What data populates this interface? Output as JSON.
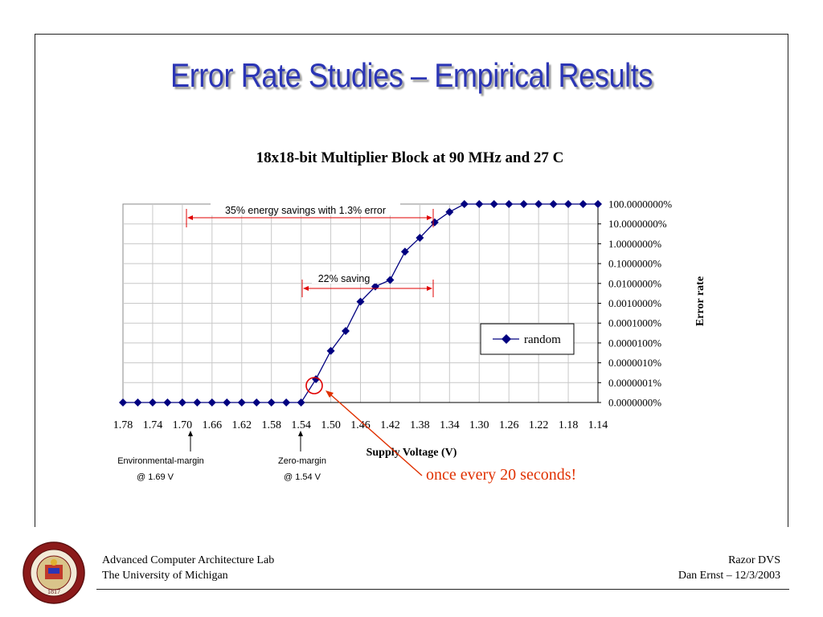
{
  "slide": {
    "title": "Error Rate Studies – Empirical Results"
  },
  "footer": {
    "left_line1": "Advanced Computer Architecture Lab",
    "left_line2": "The University of Michigan",
    "right_line1": "Razor DVS",
    "right_line2": "Dan Ernst – 12/3/2003"
  },
  "colors": {
    "title": "#2b35b5",
    "series": "#000080",
    "annotation": "#e00000",
    "callout": "#e03000"
  },
  "logo": {
    "text_top": "THE UNIVERSITY OF MICHIGAN",
    "year": "1817"
  },
  "chart_data": {
    "type": "line",
    "title": "18x18-bit Multiplier Block at 90 MHz and 27 C",
    "xlabel": "Supply Voltage (V)",
    "ylabel": "Error rate",
    "y_scale": "log",
    "x_reversed": true,
    "xlim": [
      1.14,
      1.78
    ],
    "grid": true,
    "legend": {
      "position": "right",
      "entries": [
        "random"
      ]
    },
    "x_tick_labels": [
      "1.78",
      "1.74",
      "1.70",
      "1.66",
      "1.62",
      "1.58",
      "1.54",
      "1.50",
      "1.46",
      "1.42",
      "1.38",
      "1.34",
      "1.30",
      "1.26",
      "1.22",
      "1.18",
      "1.14"
    ],
    "y_tick_labels": [
      "100.0000000%",
      "10.0000000%",
      "1.0000000%",
      "0.1000000%",
      "0.0100000%",
      "0.0010000%",
      "0.0001000%",
      "0.0000100%",
      "0.0000010%",
      "0.0000001%",
      "0.0000000%"
    ],
    "series": [
      {
        "name": "random",
        "x": [
          1.78,
          1.76,
          1.74,
          1.72,
          1.7,
          1.68,
          1.66,
          1.64,
          1.62,
          1.6,
          1.58,
          1.56,
          1.54,
          1.52,
          1.5,
          1.48,
          1.46,
          1.44,
          1.42,
          1.4,
          1.38,
          1.36,
          1.34,
          1.32,
          1.3,
          1.28,
          1.26,
          1.24,
          1.22,
          1.2,
          1.18,
          1.16,
          1.14
        ],
        "y_percent": [
          0,
          0,
          0,
          0,
          0,
          0,
          0,
          0,
          0,
          0,
          0,
          0,
          0,
          1.5e-07,
          4e-06,
          4e-05,
          0.0012,
          0.007,
          0.015,
          0.4,
          2,
          12,
          40,
          100,
          100,
          100,
          100,
          100,
          100,
          100,
          100,
          100,
          100
        ]
      }
    ],
    "annotations": {
      "energy_savings": "35% energy savings with 1.3% error",
      "saving": "22% saving",
      "env_margin_line1": "Environmental-margin",
      "env_margin_line2": "@ 1.69 V",
      "zero_margin_line1": "Zero-margin",
      "zero_margin_line2": "@ 1.54 V",
      "callout": "once every 20 seconds!"
    }
  }
}
